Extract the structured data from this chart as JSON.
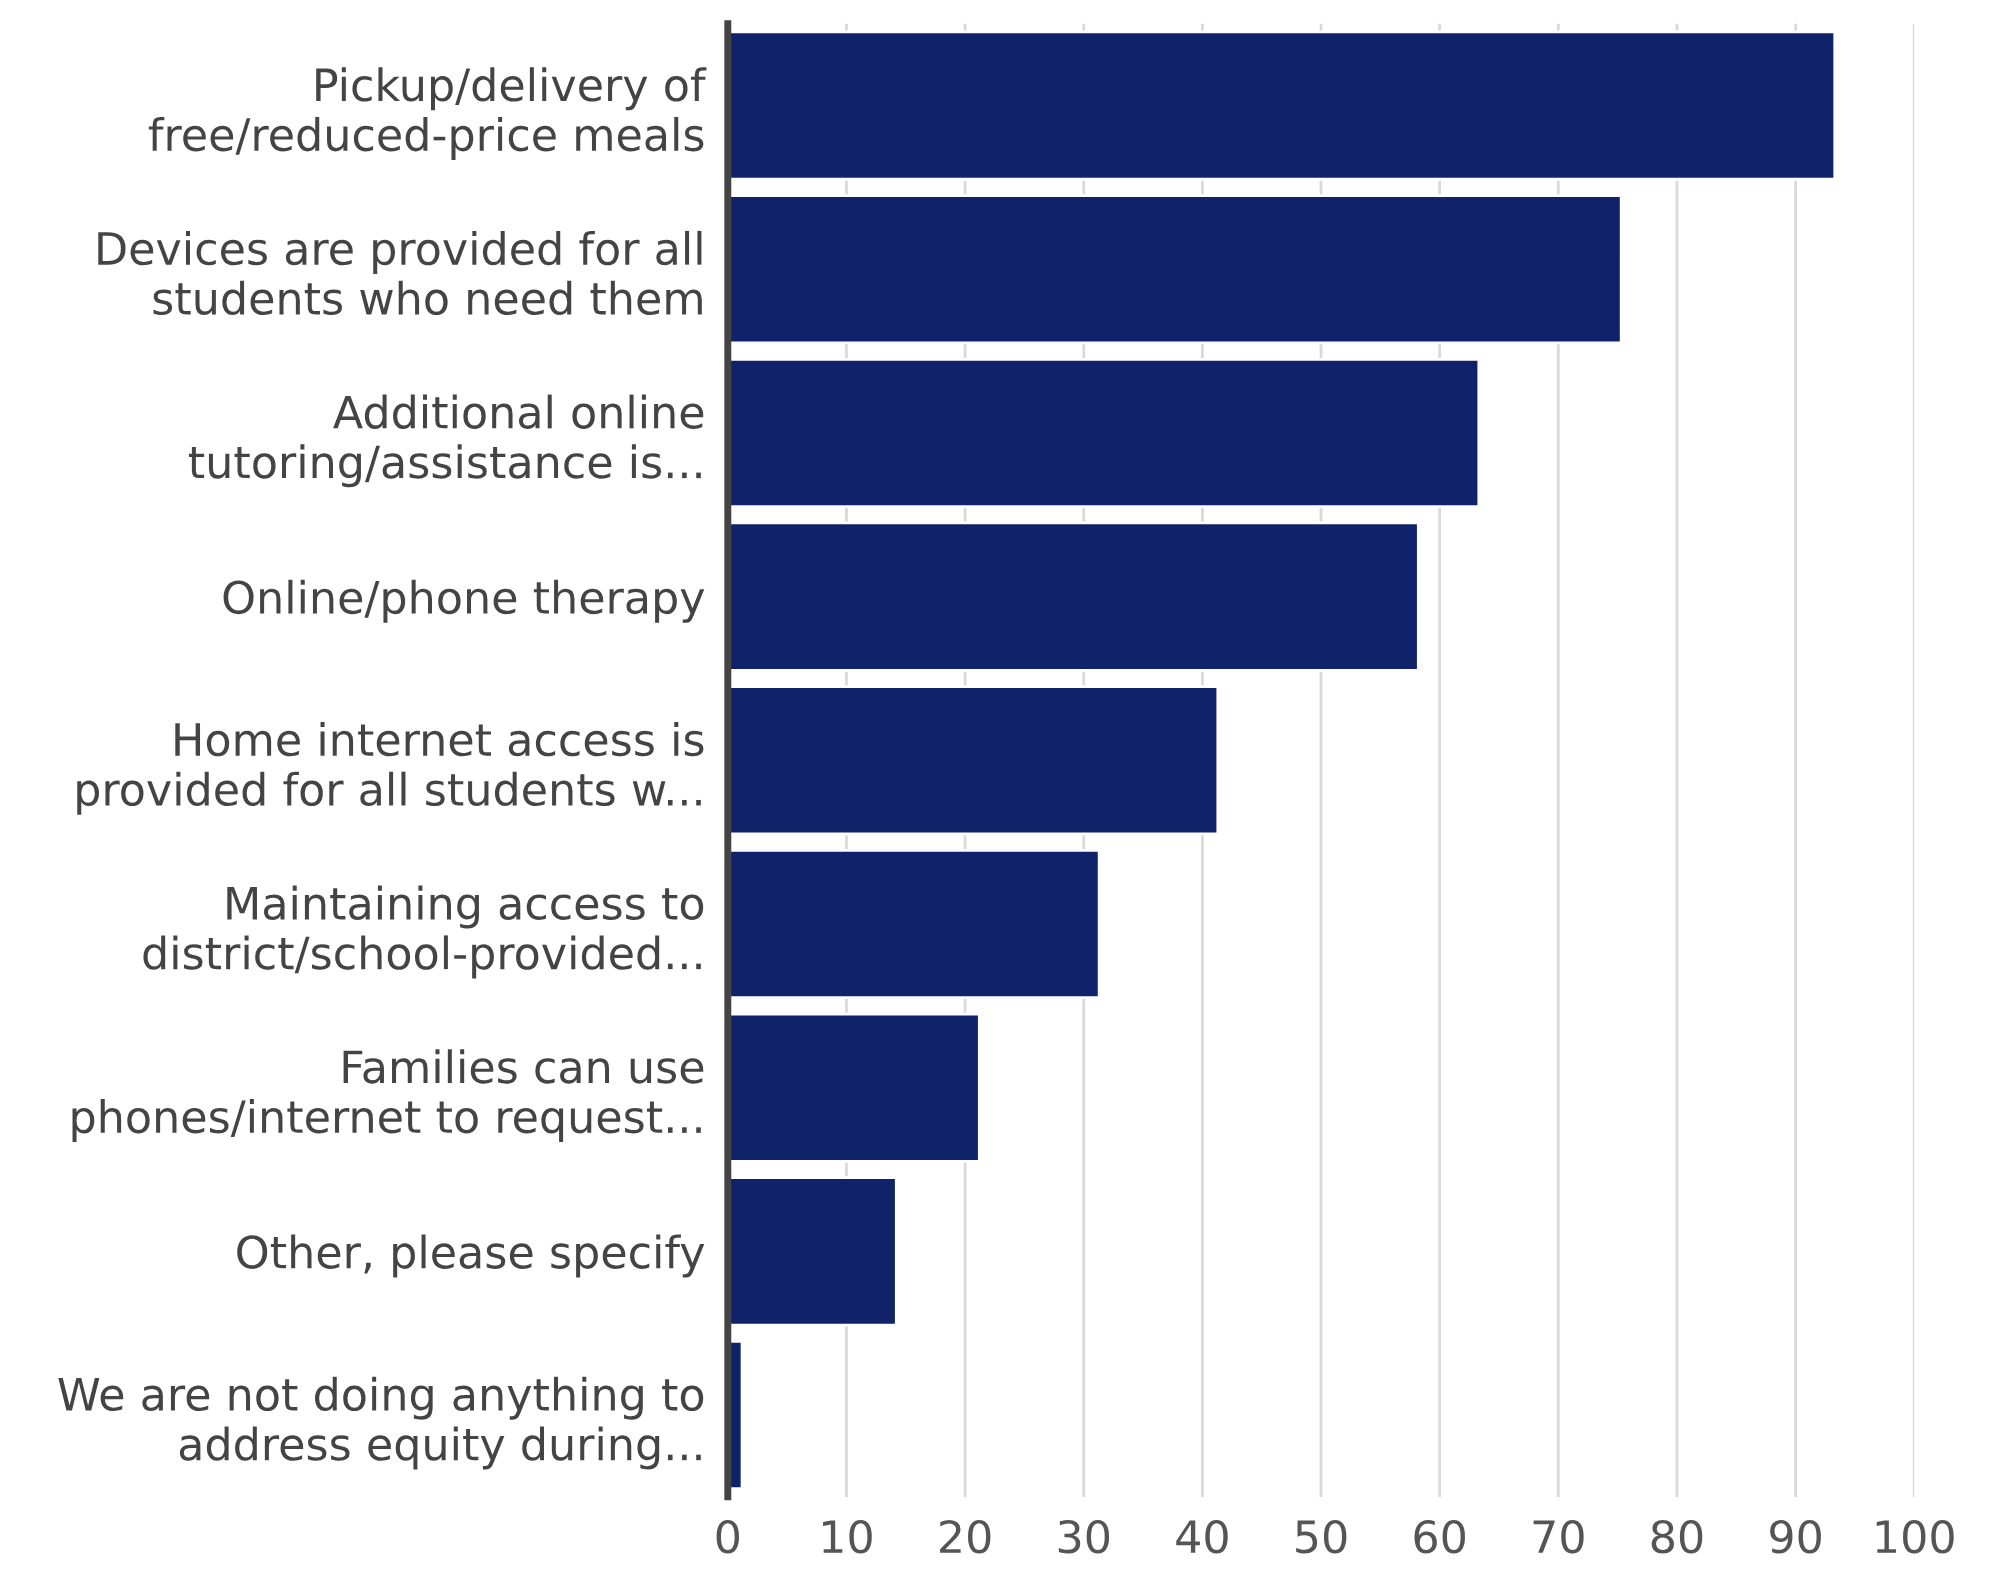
{
  "chart_data": {
    "type": "bar",
    "orientation": "horizontal",
    "categories": [
      "Pickup/delivery of\nfree/reduced-price meals",
      "Devices are provided for all\nstudents who need them",
      "Additional online\ntutoring/assistance is...",
      "Online/phone therapy",
      "Home internet access is\nprovided for all students w...",
      "Maintaining access to\ndistrict/school-provided...",
      "Families can use\nphones/internet to request...",
      "Other, please specify",
      "We are not doing anything to\naddress equity during..."
    ],
    "values": [
      93.3,
      75.3,
      63.3,
      58.2,
      41.3,
      31.3,
      21.2,
      14.2,
      1.2
    ],
    "color": "#10236a",
    "xlim": [
      0,
      100
    ],
    "xticks": [
      0,
      10,
      20,
      30,
      40,
      50,
      60,
      70,
      80,
      90,
      100
    ],
    "grid": "x",
    "legend": false
  }
}
